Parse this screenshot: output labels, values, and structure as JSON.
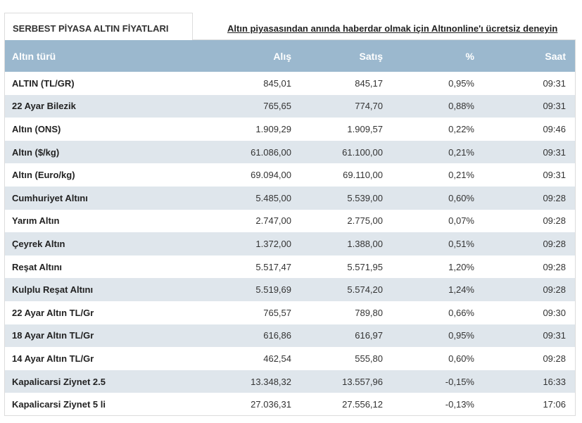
{
  "tab": {
    "label": "SERBEST PİYASA ALTIN FİYATLARI"
  },
  "promo": {
    "text": "Altın piyasasından anında haberdar olmak için Altınonline'ı ücretsiz deneyin"
  },
  "table": {
    "headers": {
      "name": "Altın türü",
      "buy": "Alış",
      "sell": "Satış",
      "pct": "%",
      "time": "Saat"
    },
    "rows": [
      {
        "name": "ALTIN (TL/GR)",
        "buy": "845,01",
        "sell": "845,17",
        "pct": "0,95%",
        "time": "09:31"
      },
      {
        "name": "22 Ayar Bilezik",
        "buy": "765,65",
        "sell": "774,70",
        "pct": "0,88%",
        "time": "09:31"
      },
      {
        "name": "Altın (ONS)",
        "buy": "1.909,29",
        "sell": "1.909,57",
        "pct": "0,22%",
        "time": "09:46"
      },
      {
        "name": "Altın ($/kg)",
        "buy": "61.086,00",
        "sell": "61.100,00",
        "pct": "0,21%",
        "time": "09:31"
      },
      {
        "name": "Altın (Euro/kg)",
        "buy": "69.094,00",
        "sell": "69.110,00",
        "pct": "0,21%",
        "time": "09:31"
      },
      {
        "name": "Cumhuriyet Altını",
        "buy": "5.485,00",
        "sell": "5.539,00",
        "pct": "0,60%",
        "time": "09:28"
      },
      {
        "name": "Yarım Altın",
        "buy": "2.747,00",
        "sell": "2.775,00",
        "pct": "0,07%",
        "time": "09:28"
      },
      {
        "name": "Çeyrek Altın",
        "buy": "1.372,00",
        "sell": "1.388,00",
        "pct": "0,51%",
        "time": "09:28"
      },
      {
        "name": "Reşat Altını",
        "buy": "5.517,47",
        "sell": "5.571,95",
        "pct": "1,20%",
        "time": "09:28"
      },
      {
        "name": "Kulplu Reşat Altını",
        "buy": "5.519,69",
        "sell": "5.574,20",
        "pct": "1,24%",
        "time": "09:28"
      },
      {
        "name": "22 Ayar Altın TL/Gr",
        "buy": "765,57",
        "sell": "789,80",
        "pct": "0,66%",
        "time": "09:30"
      },
      {
        "name": "18 Ayar Altın TL/Gr",
        "buy": "616,86",
        "sell": "616,97",
        "pct": "0,95%",
        "time": "09:31"
      },
      {
        "name": "14 Ayar Altın TL/Gr",
        "buy": "462,54",
        "sell": "555,80",
        "pct": "0,60%",
        "time": "09:28"
      },
      {
        "name": "Kapalicarsi Ziynet 2.5",
        "buy": "13.348,32",
        "sell": "13.557,96",
        "pct": "-0,15%",
        "time": "16:33"
      },
      {
        "name": "Kapalicarsi Ziynet 5 li",
        "buy": "27.036,31",
        "sell": "27.556,12",
        "pct": "-0,13%",
        "time": "17:06"
      }
    ]
  },
  "colors": {
    "header_bg": "#9bb8ce",
    "stripe_bg": "#dfe6ec"
  }
}
